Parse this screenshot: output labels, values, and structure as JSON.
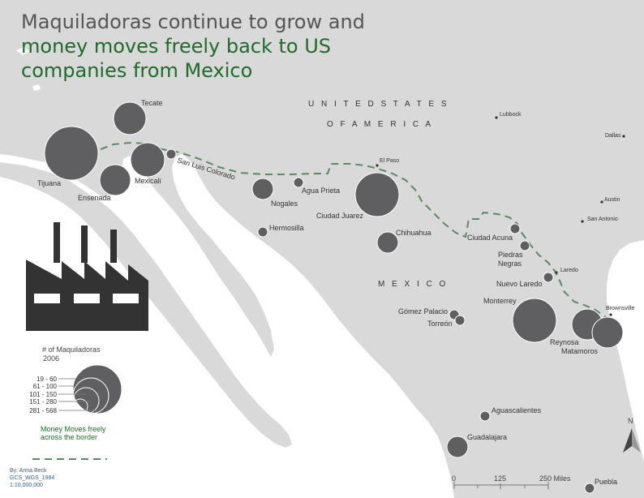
{
  "title": {
    "line1": "Maquiladoras continue to grow and",
    "line2": "money moves freely back to US",
    "line3": "companies from Mexico"
  },
  "countries": {
    "us_line1": "U N I T E D   S T A T E S",
    "us_line2": "O F   A M E R I C A",
    "mexico": "M E X I C O"
  },
  "cities": [
    {
      "id": "tecate",
      "label": "Tecate",
      "class": "281 - 568"
    },
    {
      "id": "tijuana",
      "label": "Tijuana",
      "class": "281 - 568"
    },
    {
      "id": "mexicali",
      "label": "Mexicali",
      "class": "151 - 280"
    },
    {
      "id": "ensenada",
      "label": "Ensenada",
      "class": "151 - 280"
    },
    {
      "id": "san_luis",
      "label": "San Luis Colorado",
      "class": "19 - 60"
    },
    {
      "id": "nogales",
      "label": "Nogales",
      "class": "61 - 100"
    },
    {
      "id": "agua_prieta",
      "label": "Agua Prieta",
      "class": "19 - 60"
    },
    {
      "id": "ciudad_juarez",
      "label": "Ciudad Juarez",
      "class": "281 - 568"
    },
    {
      "id": "hermosillo",
      "label": "Hermosilla",
      "class": "19 - 60"
    },
    {
      "id": "chihuahua",
      "label": "Chihuahua",
      "class": "61 - 100"
    },
    {
      "id": "ciudad_acuna",
      "label": "Ciudad Acuna",
      "class": "19 - 60"
    },
    {
      "id": "piedras_negras",
      "label": "Piedras Negras",
      "class": "19 - 60"
    },
    {
      "id": "nuevo_laredo",
      "label": "Nuevo Laredo",
      "class": "19 - 60"
    },
    {
      "id": "monterrey",
      "label": "Monterrey",
      "class": "281 - 568"
    },
    {
      "id": "reynosa",
      "label": "Reynosa",
      "class": "101 - 150"
    },
    {
      "id": "matamoros",
      "label": "Matamoros",
      "class": "101 - 150"
    },
    {
      "id": "gomez_palacio",
      "label": "Gómez Palacio",
      "class": "19 - 60"
    },
    {
      "id": "torreon",
      "label": "Torreón",
      "class": "19 - 60"
    },
    {
      "id": "aguascalientes",
      "label": "Aguascalientes",
      "class": "19 - 60"
    },
    {
      "id": "guadalajara",
      "label": "Guadalajara",
      "class": "61 - 100"
    },
    {
      "id": "puebla",
      "label": "Puebla",
      "class": "19 - 60"
    }
  ],
  "us_cities": [
    {
      "id": "el_paso",
      "label": "El Paso"
    },
    {
      "id": "lubbock",
      "label": "Lubbock"
    },
    {
      "id": "dallas",
      "label": "Dallas"
    },
    {
      "id": "austin",
      "label": "Austin"
    },
    {
      "id": "san_antonio",
      "label": "San Antonio"
    },
    {
      "id": "laredo",
      "label": "Laredo"
    },
    {
      "id": "brownsville",
      "label": "Brownsville"
    }
  ],
  "legend": {
    "title_line1": "# of Maquiladoras",
    "title_line2": "2006",
    "classes": [
      "19 - 60",
      "61 - 100",
      "101 - 150",
      "151 - 280",
      "281 - 568"
    ],
    "flow_label": "Money Moves freely across the border"
  },
  "scalebar": {
    "labels": [
      "0",
      "125",
      "250 Miles"
    ]
  },
  "north": "N",
  "credit": {
    "line1": "By: Anna Beck",
    "line2": "GCS_WGS_1984",
    "line3": "1:10,000,000"
  },
  "colors": {
    "land": "#d9d9d9",
    "water": "#ffffff",
    "symbol": "#5f5f62",
    "border_line": "#5a8a63",
    "title_green": "#1f6b2a"
  },
  "icons": {
    "factory": "factory-icon",
    "north_arrow": "north-arrow-icon"
  }
}
